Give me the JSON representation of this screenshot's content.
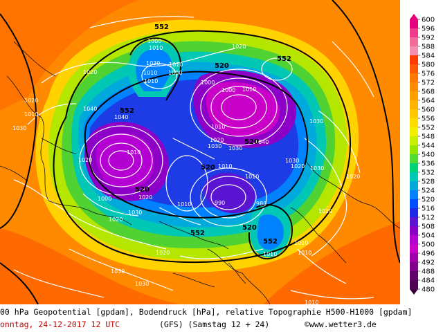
{
  "map": {
    "geopotential_labels": [
      "552",
      "552",
      "552",
      "520",
      "520",
      "520",
      "552",
      "520",
      "552",
      "520"
    ],
    "pressure_labels": [
      "1000",
      "1010",
      "1010",
      "1000",
      "1020",
      "1020",
      "1020",
      "1010",
      "1010",
      "1000",
      "1040",
      "1040",
      "1010",
      "1020",
      "1030",
      "1010",
      "1020",
      "1000",
      "1010",
      "1030",
      "1040",
      "1010",
      "1020",
      "1030",
      "1030",
      "1020",
      "1000",
      "1010",
      "1010",
      "990",
      "980",
      "1020",
      "1020",
      "1030",
      "1020",
      "1030",
      "1030",
      "1020",
      "1010",
      "1030",
      "1030",
      "1010",
      "1010",
      "1020",
      "1010",
      "1010"
    ]
  },
  "legend": {
    "values": [
      "600",
      "596",
      "592",
      "588",
      "584",
      "580",
      "576",
      "572",
      "568",
      "564",
      "560",
      "556",
      "552",
      "548",
      "544",
      "540",
      "536",
      "532",
      "528",
      "524",
      "520",
      "516",
      "512",
      "508",
      "504",
      "500",
      "496",
      "492",
      "488",
      "484",
      "480"
    ],
    "colors": [
      "#e5007e",
      "#ef3a8a",
      "#f26c9b",
      "#f58eae",
      "#ff3c00",
      "#ff5a00",
      "#ff7800",
      "#ff8c00",
      "#ffa000",
      "#ffb400",
      "#ffc800",
      "#ffdc00",
      "#f0f000",
      "#c8f000",
      "#96e600",
      "#50dc32",
      "#00d278",
      "#00c8b4",
      "#00aadc",
      "#0082ff",
      "#0050ff",
      "#1e28e6",
      "#5a14d2",
      "#8c00c8",
      "#b400d2",
      "#c800c8",
      "#a000aa",
      "#82008c",
      "#64006e",
      "#500055",
      "#3c0040"
    ]
  },
  "footer": {
    "line1": "00 hPa Geopotential [gpdam], Bodendruck [hPa], relative Topographie H500-H1000 [gpdam]",
    "date": "onntag, 24-12-2017  12 UTC",
    "model": "(GFS)  (Samstag 12 + 24)",
    "copyright": "©www.wetter3.de"
  }
}
